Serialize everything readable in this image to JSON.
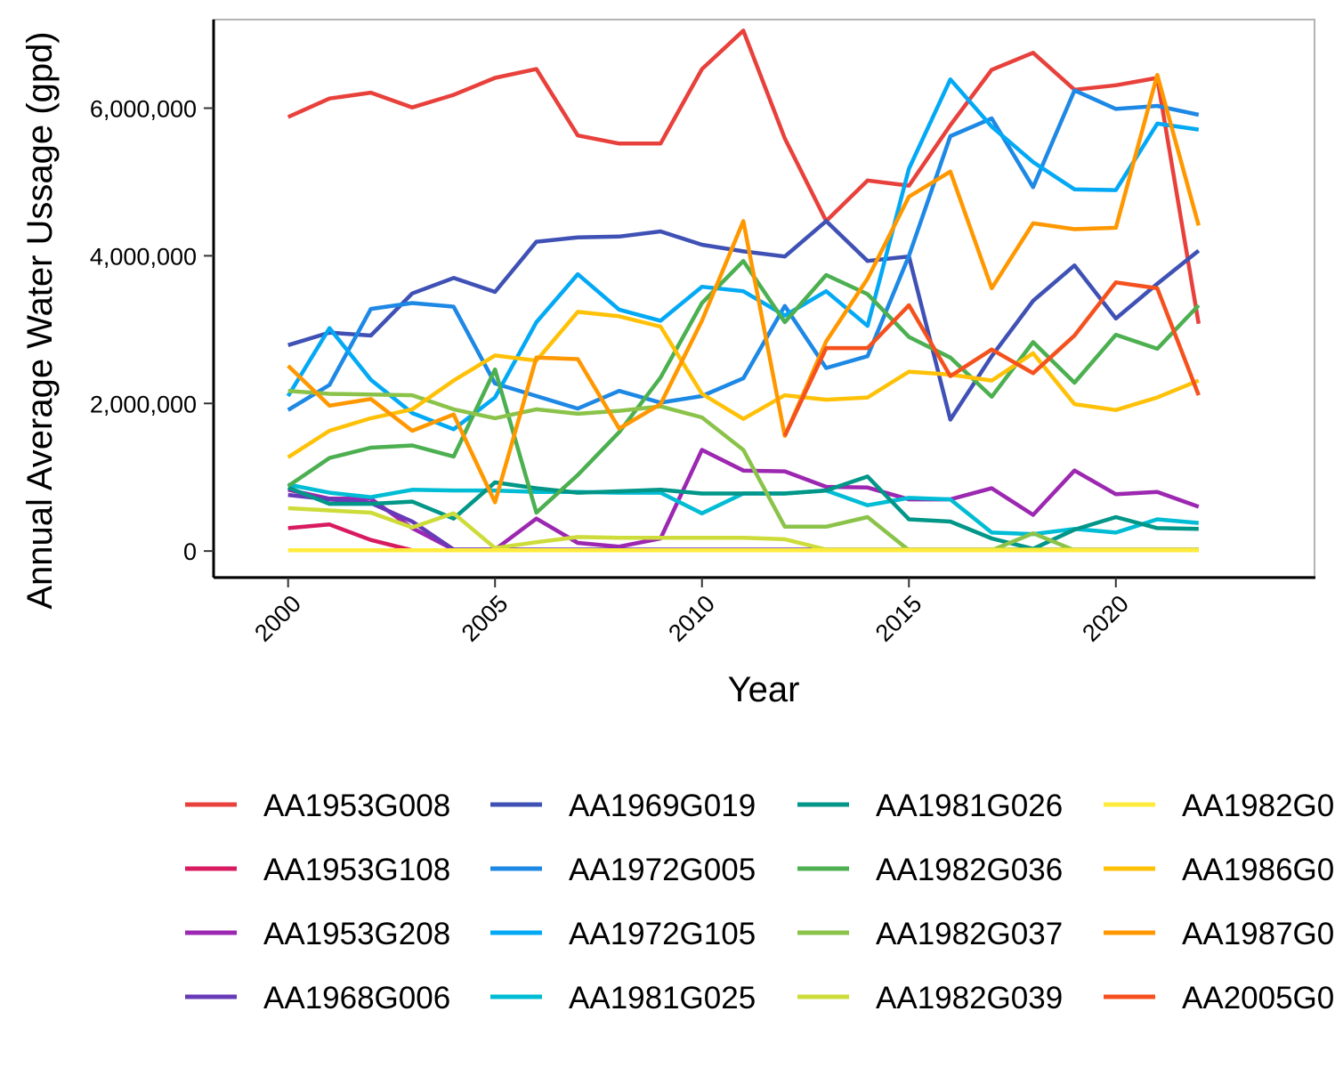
{
  "chart_data": {
    "type": "line",
    "xlabel": "Year",
    "ylabel": "Annual Average Water Ussage (gpd)",
    "xlim": [
      1998.2,
      2024.8
    ],
    "ylim": [
      -360000,
      7200000
    ],
    "x_ticks": [
      2000,
      2005,
      2010,
      2015,
      2020
    ],
    "x_tick_labels": [
      "2000",
      "2005",
      "2010",
      "2015",
      "2020"
    ],
    "y_ticks": [
      0,
      2000000,
      4000000,
      6000000
    ],
    "y_tick_labels": [
      "0",
      "2,000,000",
      "4,000,000",
      "6,000,000"
    ],
    "grid": false,
    "legend_position": "bottom",
    "x": [
      2000,
      2001,
      2002,
      2003,
      2004,
      2005,
      2006,
      2007,
      2008,
      2009,
      2010,
      2011,
      2012,
      2013,
      2014,
      2015,
      2016,
      2017,
      2018,
      2019,
      2020,
      2021,
      2022
    ],
    "series": [
      {
        "name": "AA1953G008",
        "color": "#e8413c",
        "values": [
          5880000,
          6130000,
          6210000,
          6010000,
          6180000,
          6410000,
          6530000,
          5630000,
          5520000,
          5520000,
          6530000,
          7050000,
          5590000,
          4470000,
          5020000,
          4950000,
          5770000,
          6520000,
          6750000,
          6250000,
          6310000,
          6410000,
          3080000
        ]
      },
      {
        "name": "AA1953G108",
        "color": "#d81b60",
        "values": [
          310000,
          360000,
          150000,
          10000,
          10000,
          10000,
          10000,
          10000,
          10000,
          10000,
          10000,
          10000,
          10000,
          10000,
          10000,
          10000,
          10000,
          10000,
          10000,
          10000,
          10000,
          10000,
          10000
        ]
      },
      {
        "name": "AA1953G208",
        "color": "#9c27b0",
        "values": [
          830000,
          710000,
          710000,
          310000,
          20000,
          20000,
          440000,
          110000,
          60000,
          170000,
          1370000,
          1090000,
          1080000,
          870000,
          860000,
          700000,
          700000,
          850000,
          490000,
          1090000,
          770000,
          800000,
          600000
        ]
      },
      {
        "name": "AA1968G006",
        "color": "#673ab7",
        "values": [
          760000,
          700000,
          650000,
          400000,
          20000,
          20000,
          20000,
          20000,
          20000,
          20000,
          20000,
          20000,
          20000,
          20000,
          20000,
          20000,
          20000,
          20000,
          20000,
          20000,
          20000,
          20000,
          20000
        ]
      },
      {
        "name": "AA1969G019",
        "color": "#3f51b5",
        "values": [
          2790000,
          2960000,
          2920000,
          3490000,
          3700000,
          3510000,
          4190000,
          4250000,
          4260000,
          4330000,
          4150000,
          4060000,
          3990000,
          4470000,
          3930000,
          3990000,
          1780000,
          2640000,
          3390000,
          3870000,
          3150000,
          3620000,
          4070000
        ]
      },
      {
        "name": "AA1972G005",
        "color": "#1e88e5",
        "values": [
          1910000,
          2250000,
          3280000,
          3360000,
          3310000,
          2270000,
          2100000,
          1930000,
          2170000,
          2010000,
          2100000,
          2340000,
          3320000,
          2480000,
          2640000,
          4000000,
          5620000,
          5860000,
          4930000,
          6240000,
          5990000,
          6030000,
          5910000
        ]
      },
      {
        "name": "AA1972G105",
        "color": "#03a9f4",
        "values": [
          2100000,
          3020000,
          2320000,
          1870000,
          1650000,
          2080000,
          3100000,
          3750000,
          3270000,
          3120000,
          3580000,
          3520000,
          3190000,
          3520000,
          3050000,
          5180000,
          6390000,
          5750000,
          5270000,
          4900000,
          4890000,
          5790000,
          5710000
        ]
      },
      {
        "name": "AA1981G025",
        "color": "#00bcd4",
        "values": [
          900000,
          790000,
          730000,
          830000,
          820000,
          820000,
          800000,
          800000,
          790000,
          790000,
          510000,
          780000,
          780000,
          820000,
          620000,
          720000,
          700000,
          250000,
          230000,
          300000,
          250000,
          430000,
          380000
        ]
      },
      {
        "name": "AA1981G026",
        "color": "#009688",
        "values": [
          860000,
          640000,
          640000,
          670000,
          440000,
          930000,
          850000,
          790000,
          810000,
          830000,
          780000,
          780000,
          780000,
          820000,
          1010000,
          430000,
          400000,
          170000,
          30000,
          290000,
          460000,
          310000,
          300000
        ]
      },
      {
        "name": "AA1982G036",
        "color": "#4caf50",
        "values": [
          880000,
          1260000,
          1400000,
          1430000,
          1280000,
          2460000,
          520000,
          1030000,
          1610000,
          2350000,
          3360000,
          3930000,
          3100000,
          3740000,
          3480000,
          2900000,
          2620000,
          2090000,
          2830000,
          2280000,
          2930000,
          2740000,
          3330000
        ]
      },
      {
        "name": "AA1982G037",
        "color": "#8bc34a",
        "values": [
          2170000,
          2130000,
          2120000,
          2110000,
          1920000,
          1800000,
          1920000,
          1860000,
          1900000,
          1960000,
          1810000,
          1370000,
          330000,
          330000,
          460000,
          10000,
          10000,
          10000,
          240000,
          10000,
          10000,
          10000,
          10000
        ]
      },
      {
        "name": "AA1982G039",
        "color": "#cddc39",
        "values": [
          580000,
          550000,
          520000,
          320000,
          510000,
          40000,
          120000,
          190000,
          180000,
          180000,
          180000,
          180000,
          160000,
          20000,
          20000,
          20000,
          20000,
          20000,
          20000,
          20000,
          20000,
          20000,
          20000
        ]
      },
      {
        "name": "AA1982G0",
        "color": "#ffeb3b",
        "values": [
          10000,
          10000,
          10000,
          10000,
          10000,
          10000,
          10000,
          10000,
          10000,
          10000,
          10000,
          10000,
          10000,
          10000,
          10000,
          10000,
          10000,
          10000,
          10000,
          10000,
          10000,
          10000,
          10000
        ]
      },
      {
        "name": "AA1986G0",
        "color": "#ffc107",
        "values": [
          1270000,
          1630000,
          1800000,
          1920000,
          2310000,
          2650000,
          2580000,
          3240000,
          3180000,
          3040000,
          2130000,
          1790000,
          2110000,
          2050000,
          2080000,
          2430000,
          2390000,
          2310000,
          2680000,
          1990000,
          1910000,
          2080000,
          2310000
        ]
      },
      {
        "name": "AA1987G0",
        "color": "#ff9800",
        "values": [
          2510000,
          1970000,
          2060000,
          1630000,
          1850000,
          660000,
          2620000,
          2600000,
          1660000,
          1990000,
          3120000,
          4470000,
          1560000,
          2840000,
          3690000,
          4800000,
          5140000,
          3560000,
          4440000,
          4360000,
          4380000,
          6450000,
          4410000
        ]
      },
      {
        "name": "AA2005G0",
        "color": "#f4511e",
        "values": [
          null,
          null,
          null,
          null,
          null,
          null,
          null,
          null,
          null,
          null,
          null,
          null,
          1560000,
          2750000,
          2750000,
          3330000,
          2370000,
          2730000,
          2410000,
          2920000,
          3640000,
          3560000,
          2110000
        ]
      }
    ]
  }
}
